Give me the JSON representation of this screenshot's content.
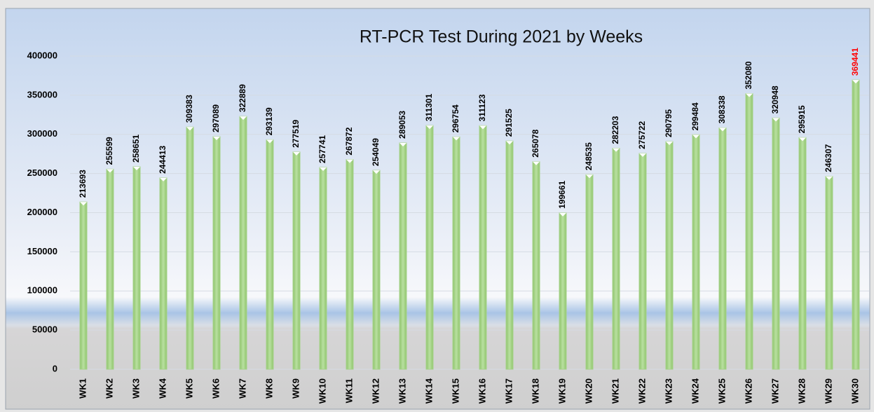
{
  "chart_data": {
    "type": "bar",
    "title": "RT-PCR Test During 2021 by Weeks",
    "categories": [
      "WK1",
      "WK2",
      "WK3",
      "WK4",
      "WK5",
      "WK6",
      "WK7",
      "WK8",
      "WK9",
      "WK10",
      "WK11",
      "WK12",
      "WK13",
      "WK14",
      "WK15",
      "WK16",
      "WK17",
      "WK18",
      "WK19",
      "WK20",
      "WK21",
      "WK22",
      "WK23",
      "WK24",
      "WK25",
      "WK26",
      "WK27",
      "WK28",
      "WK29",
      "WK30"
    ],
    "values": [
      213693,
      255599,
      258651,
      244413,
      309383,
      297089,
      322889,
      293139,
      277519,
      257741,
      267872,
      254049,
      289053,
      311301,
      296754,
      311123,
      291525,
      265078,
      199661,
      248535,
      282203,
      275722,
      290795,
      299484,
      308338,
      352080,
      320948,
      295915,
      246307,
      369441
    ],
    "color": "#a6d38a",
    "value_label_colors": [
      "#000000",
      "#000000",
      "#000000",
      "#000000",
      "#000000",
      "#000000",
      "#000000",
      "#000000",
      "#000000",
      "#000000",
      "#000000",
      "#000000",
      "#000000",
      "#000000",
      "#000000",
      "#000000",
      "#000000",
      "#000000",
      "#000000",
      "#000000",
      "#000000",
      "#000000",
      "#000000",
      "#000000",
      "#000000",
      "#000000",
      "#000000",
      "#000000",
      "#000000",
      "#ff0000"
    ],
    "ylim": [
      0,
      400000
    ],
    "yticks": [
      0,
      50000,
      100000,
      150000,
      200000,
      250000,
      300000,
      350000,
      400000
    ],
    "grid": true
  }
}
